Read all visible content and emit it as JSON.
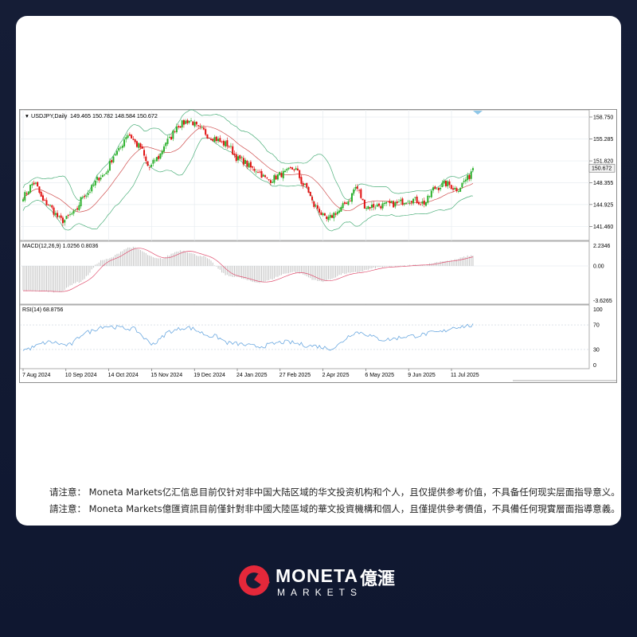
{
  "chart_data": {
    "type": "candlestick",
    "title": "USDJPY,Daily",
    "ohlc_readout": "149.465 150.782 148.584 150.672",
    "last_price": "150.672",
    "x_ticks": [
      "7 Aug 2024",
      "10 Sep 2024",
      "14 Oct 2024",
      "15 Nov 2024",
      "19 Dec 2024",
      "24 Jan 2025",
      "27 Feb 2025",
      "2 Apr 2025",
      "6 May 2025",
      "9 Jun 2025",
      "11 Jul 2025"
    ],
    "price_ticks": [
      "158.750",
      "155.285",
      "151.820",
      "148.355",
      "144.925",
      "141.460"
    ],
    "price_range": [
      139.5,
      159.5
    ],
    "price_keypoints": [
      {
        "t": 0,
        "p": 146.3
      },
      {
        "t": 6,
        "p": 148.3
      },
      {
        "t": 12,
        "p": 145.2
      },
      {
        "t": 22,
        "p": 142.4
      },
      {
        "t": 28,
        "p": 143.5
      },
      {
        "t": 34,
        "p": 146.5
      },
      {
        "t": 44,
        "p": 149.5
      },
      {
        "t": 52,
        "p": 153.2
      },
      {
        "t": 58,
        "p": 156.0
      },
      {
        "t": 64,
        "p": 154.2
      },
      {
        "t": 70,
        "p": 150.8
      },
      {
        "t": 74,
        "p": 152.2
      },
      {
        "t": 80,
        "p": 155.0
      },
      {
        "t": 86,
        "p": 157.5
      },
      {
        "t": 92,
        "p": 158.2
      },
      {
        "t": 98,
        "p": 156.8
      },
      {
        "t": 104,
        "p": 155.6
      },
      {
        "t": 112,
        "p": 154.5
      },
      {
        "t": 120,
        "p": 152.0
      },
      {
        "t": 128,
        "p": 150.5
      },
      {
        "t": 136,
        "p": 148.8
      },
      {
        "t": 144,
        "p": 149.8
      },
      {
        "t": 150,
        "p": 150.6
      },
      {
        "t": 156,
        "p": 147.8
      },
      {
        "t": 162,
        "p": 144.5
      },
      {
        "t": 168,
        "p": 142.5
      },
      {
        "t": 174,
        "p": 143.8
      },
      {
        "t": 180,
        "p": 145.5
      },
      {
        "t": 184,
        "p": 147.6
      },
      {
        "t": 190,
        "p": 144.6
      },
      {
        "t": 198,
        "p": 144.8
      },
      {
        "t": 206,
        "p": 145.0
      },
      {
        "t": 214,
        "p": 145.8
      },
      {
        "t": 222,
        "p": 145.2
      },
      {
        "t": 228,
        "p": 147.5
      },
      {
        "t": 234,
        "p": 148.2
      },
      {
        "t": 240,
        "p": 147.4
      },
      {
        "t": 246,
        "p": 149.0
      },
      {
        "t": 249,
        "p": 150.672
      }
    ],
    "macd": {
      "label": "MACD(12,26,9) 1.0256 0.8036",
      "ticks": [
        "2.2346",
        "0.00",
        "-3.6265"
      ],
      "range": [
        -3.6265,
        2.2346
      ],
      "keypoints": [
        {
          "t": 0,
          "v": -2.4
        },
        {
          "t": 20,
          "v": -2.5
        },
        {
          "t": 30,
          "v": -1.6
        },
        {
          "t": 45,
          "v": 0.6
        },
        {
          "t": 60,
          "v": 1.8
        },
        {
          "t": 75,
          "v": 0.7
        },
        {
          "t": 88,
          "v": 1.5
        },
        {
          "t": 98,
          "v": 1.0
        },
        {
          "t": 115,
          "v": -1.0
        },
        {
          "t": 130,
          "v": -1.6
        },
        {
          "t": 150,
          "v": -0.6
        },
        {
          "t": 165,
          "v": -1.5
        },
        {
          "t": 180,
          "v": -0.7
        },
        {
          "t": 200,
          "v": -0.1
        },
        {
          "t": 220,
          "v": 0.1
        },
        {
          "t": 235,
          "v": 0.5
        },
        {
          "t": 249,
          "v": 1.0
        }
      ]
    },
    "rsi": {
      "label": "RSI(14) 68.8756",
      "ticks": [
        "100",
        "70",
        "30",
        "0"
      ],
      "range": [
        0,
        100
      ],
      "keypoints": [
        {
          "t": 0,
          "v": 30
        },
        {
          "t": 15,
          "v": 42
        },
        {
          "t": 25,
          "v": 37
        },
        {
          "t": 35,
          "v": 58
        },
        {
          "t": 45,
          "v": 68
        },
        {
          "t": 60,
          "v": 64
        },
        {
          "t": 72,
          "v": 40
        },
        {
          "t": 82,
          "v": 60
        },
        {
          "t": 90,
          "v": 66
        },
        {
          "t": 105,
          "v": 52
        },
        {
          "t": 115,
          "v": 40
        },
        {
          "t": 130,
          "v": 35
        },
        {
          "t": 145,
          "v": 42
        },
        {
          "t": 160,
          "v": 36
        },
        {
          "t": 170,
          "v": 32
        },
        {
          "t": 185,
          "v": 58
        },
        {
          "t": 200,
          "v": 46
        },
        {
          "t": 215,
          "v": 52
        },
        {
          "t": 230,
          "v": 58
        },
        {
          "t": 240,
          "v": 67
        },
        {
          "t": 249,
          "v": 69
        }
      ]
    },
    "colors": {
      "up": "#2bb02b",
      "down": "#e01010",
      "bb": "#4caf7a",
      "ma": "#d05050",
      "macd_hist": "#c8c8c8",
      "macd_signal": "#e05070",
      "rsi": "#6aa8e0",
      "grid": "#e7ecf0"
    }
  },
  "disclaimer": {
    "simplified": "请注意： Moneta Markets亿汇信息目前仅针对非中国大陆区域的华文投资机构和个人，且仅提供参考价值，不具备任何现实层面指导意义。",
    "traditional": "請注意： Moneta Markets億匯資訊目前僅針對非中國大陸區域的華文投資機構和個人，且僅提供參考價值，不具備任何現實層面指導意義。"
  },
  "brand": {
    "name": "MONETA",
    "chinese": "億滙",
    "sub": "MARKETS",
    "color": "#e4283a"
  }
}
